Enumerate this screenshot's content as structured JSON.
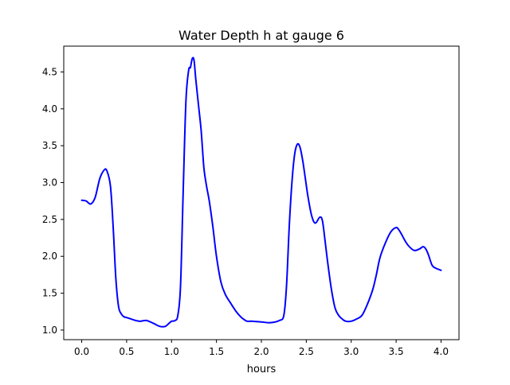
{
  "chart_data": {
    "type": "line",
    "title": "Water Depth h at gauge 6",
    "xlabel": "hours",
    "ylabel": "",
    "xlim": [
      -0.2,
      4.2
    ],
    "ylim": [
      0.87,
      4.85
    ],
    "xticks": [
      0.0,
      0.5,
      1.0,
      1.5,
      2.0,
      2.5,
      3.0,
      3.5,
      4.0
    ],
    "xtick_labels": [
      "0.0",
      "0.5",
      "1.0",
      "1.5",
      "2.0",
      "2.5",
      "3.0",
      "3.5",
      "4.0"
    ],
    "yticks": [
      1.0,
      1.5,
      2.0,
      2.5,
      3.0,
      3.5,
      4.0,
      4.5
    ],
    "ytick_labels": [
      "1.0",
      "1.5",
      "2.0",
      "2.5",
      "3.0",
      "3.5",
      "4.0",
      "4.5"
    ],
    "grid": false,
    "colors": {
      "line": "#0000ff"
    },
    "series": [
      {
        "x": [
          0.0,
          0.05,
          0.1,
          0.15,
          0.2,
          0.25,
          0.28,
          0.32,
          0.35,
          0.38,
          0.41,
          0.44,
          0.47,
          0.5,
          0.55,
          0.6,
          0.65,
          0.72,
          0.8,
          0.87,
          0.93,
          0.97,
          1.0,
          1.04,
          1.07,
          1.1,
          1.13,
          1.16,
          1.19,
          1.21,
          1.23,
          1.25,
          1.27,
          1.3,
          1.33,
          1.36,
          1.39,
          1.42,
          1.46,
          1.5,
          1.55,
          1.6,
          1.65,
          1.72,
          1.77,
          1.8,
          1.84,
          1.9,
          2.0,
          2.1,
          2.2,
          2.25,
          2.28,
          2.31,
          2.34,
          2.37,
          2.4,
          2.43,
          2.46,
          2.49,
          2.52,
          2.56,
          2.6,
          2.65,
          2.68,
          2.71,
          2.74,
          2.78,
          2.82,
          2.86,
          2.9,
          2.94,
          3.0,
          3.06,
          3.12,
          3.18,
          3.24,
          3.28,
          3.32,
          3.38,
          3.44,
          3.5,
          3.53,
          3.56,
          3.6,
          3.64,
          3.7,
          3.76,
          3.8,
          3.83,
          3.86,
          3.9,
          3.94,
          4.0
        ],
        "y": [
          2.76,
          2.75,
          2.71,
          2.8,
          3.05,
          3.17,
          3.16,
          2.95,
          2.4,
          1.7,
          1.32,
          1.22,
          1.18,
          1.17,
          1.15,
          1.13,
          1.12,
          1.13,
          1.09,
          1.05,
          1.05,
          1.09,
          1.12,
          1.13,
          1.2,
          1.6,
          2.9,
          4.1,
          4.52,
          4.56,
          4.68,
          4.66,
          4.4,
          4.05,
          3.7,
          3.2,
          2.95,
          2.75,
          2.4,
          2.0,
          1.65,
          1.48,
          1.38,
          1.25,
          1.18,
          1.15,
          1.12,
          1.12,
          1.11,
          1.1,
          1.13,
          1.2,
          1.6,
          2.4,
          3.0,
          3.38,
          3.52,
          3.48,
          3.3,
          3.05,
          2.8,
          2.55,
          2.45,
          2.53,
          2.48,
          2.2,
          1.9,
          1.55,
          1.3,
          1.2,
          1.15,
          1.12,
          1.12,
          1.15,
          1.2,
          1.35,
          1.55,
          1.75,
          1.98,
          2.18,
          2.33,
          2.39,
          2.36,
          2.3,
          2.21,
          2.14,
          2.08,
          2.1,
          2.13,
          2.1,
          2.02,
          1.88,
          1.84,
          1.81
        ]
      }
    ]
  }
}
